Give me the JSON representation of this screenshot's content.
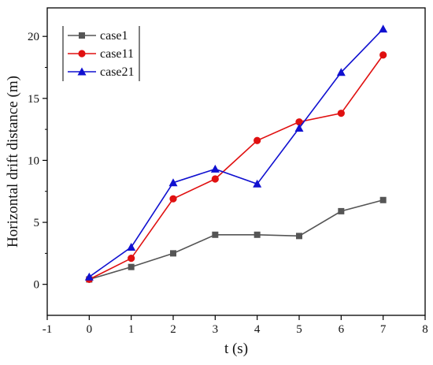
{
  "chart_data": {
    "type": "line",
    "title": "",
    "xlabel": "t (s)",
    "ylabel": "Horizontal drift distance (m)",
    "xlim": [
      -1,
      8
    ],
    "ylim": [
      -2.5,
      22.3
    ],
    "xticks": [
      -1,
      0,
      1,
      2,
      3,
      4,
      5,
      6,
      7,
      8
    ],
    "yticks": [
      0,
      5,
      10,
      15,
      20
    ],
    "grid": false,
    "legend_position": "top-left",
    "x": [
      0,
      1,
      2,
      3,
      4,
      5,
      6,
      7
    ],
    "series": [
      {
        "name": "case1",
        "color": "#555555",
        "marker": "square",
        "values": [
          0.4,
          1.4,
          2.5,
          4.0,
          4.0,
          3.9,
          5.9,
          6.8
        ]
      },
      {
        "name": "case11",
        "color": "#e01010",
        "marker": "circle",
        "values": [
          0.4,
          2.1,
          6.9,
          8.5,
          11.6,
          13.1,
          13.8,
          18.5
        ]
      },
      {
        "name": "case21",
        "color": "#1010d0",
        "marker": "triangle",
        "values": [
          0.6,
          3.0,
          8.2,
          9.3,
          8.1,
          12.6,
          17.1,
          20.6
        ]
      }
    ]
  }
}
